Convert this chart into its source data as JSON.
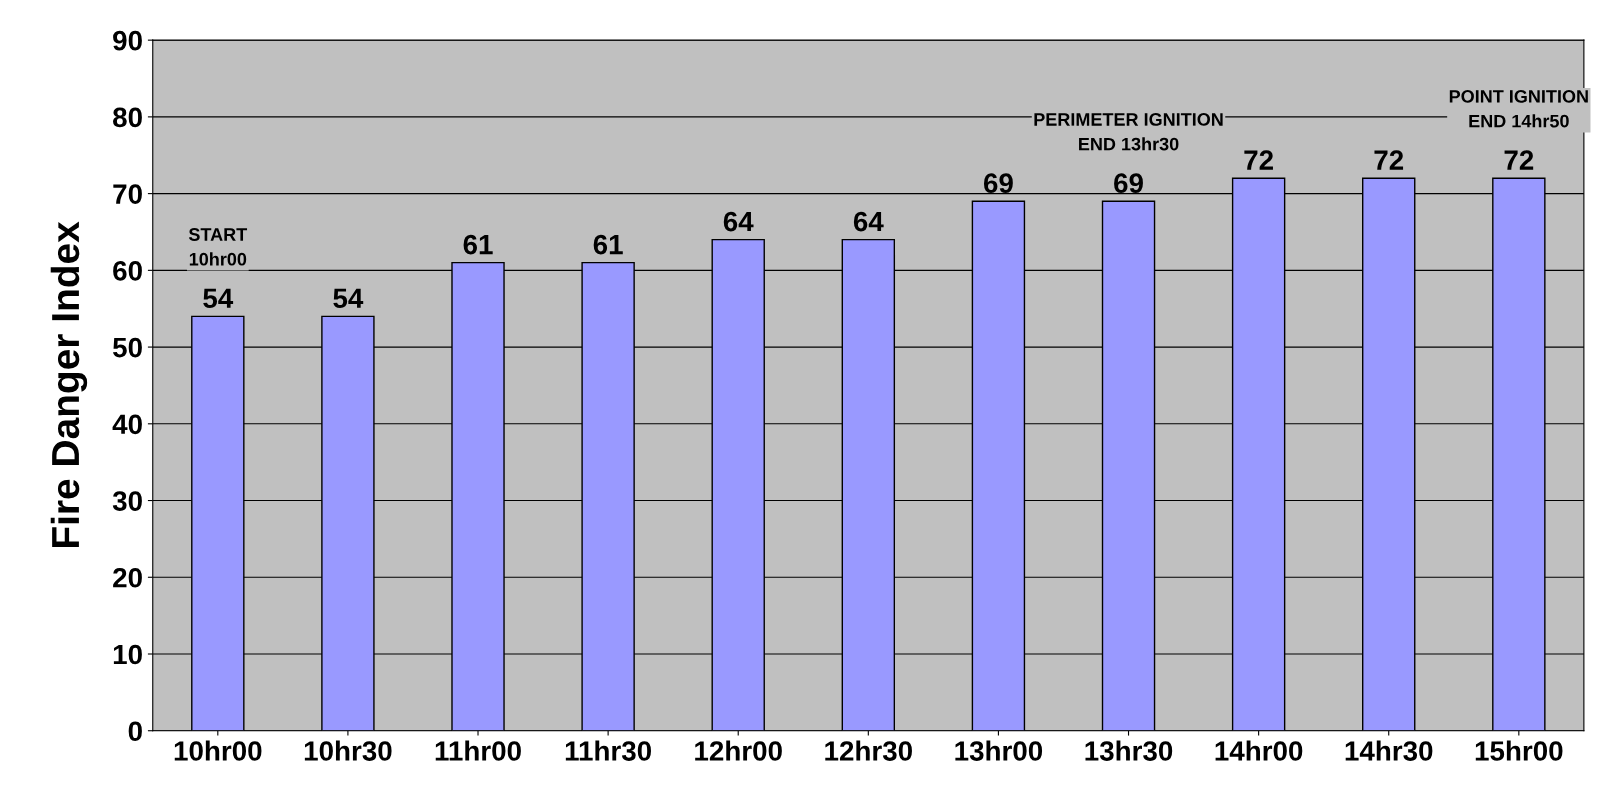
{
  "chart_data": {
    "type": "bar",
    "ylabel": "Fire Danger Index",
    "categories": [
      "10hr00",
      "10hr30",
      "11hr00",
      "11hr30",
      "12hr00",
      "12hr30",
      "13hr00",
      "13hr30",
      "14hr00",
      "14hr30",
      "15hr00"
    ],
    "values": [
      54,
      54,
      61,
      61,
      64,
      64,
      69,
      69,
      72,
      72,
      72
    ],
    "color": "#9999ff",
    "ylim": [
      0,
      90
    ],
    "yticks": [
      0,
      10,
      20,
      30,
      40,
      50,
      60,
      70,
      80,
      90
    ],
    "grid": "y",
    "data_labels": true,
    "annotations": [
      {
        "text": "START\n10hr00",
        "x": "10hr00",
        "y": 54
      },
      {
        "text": "PERIMETER IGNITION\nEND 13hr30",
        "x": "13hr30",
        "y": 69
      },
      {
        "text": "POINT IGNITION\nEND 14hr50",
        "x": "15hr00",
        "y": 72
      }
    ]
  }
}
